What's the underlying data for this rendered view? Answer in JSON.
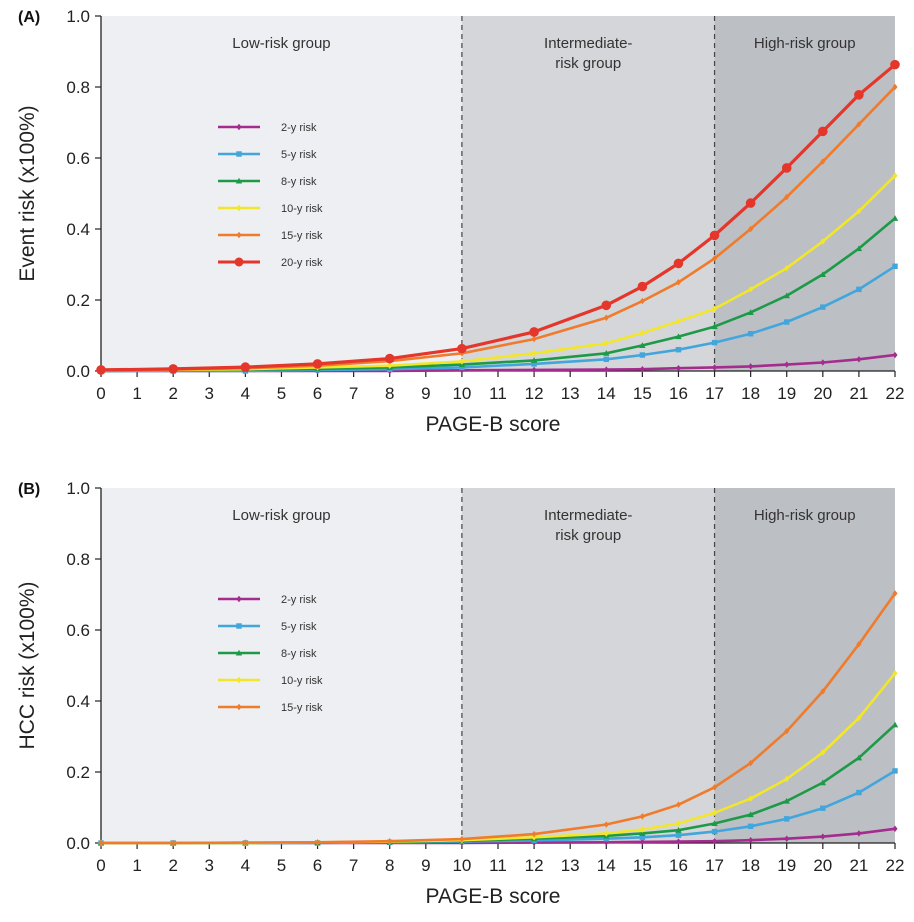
{
  "chart_data": [
    {
      "type": "line",
      "panel_label": "(A)",
      "xlabel": "PAGE-B score",
      "ylabel": "Event risk (x100%)",
      "xlim": [
        0,
        22
      ],
      "ylim": [
        0,
        1.0
      ],
      "x_ticks": [
        0,
        1,
        2,
        3,
        4,
        5,
        6,
        7,
        8,
        9,
        10,
        11,
        12,
        13,
        14,
        15,
        16,
        17,
        18,
        19,
        20,
        21,
        22
      ],
      "y_ticks": [
        "0.0",
        "0.2",
        "0.4",
        "0.6",
        "0.8",
        "1.0"
      ],
      "cutoffs": [
        10,
        17
      ],
      "zones": [
        {
          "label": [
            "Low-risk group"
          ],
          "color": "#eeeff2",
          "from": 0,
          "to": 10
        },
        {
          "label": [
            "Intermediate-",
            "risk group"
          ],
          "color": "#d5d6d9",
          "from": 10,
          "to": 17
        },
        {
          "label": [
            "High-risk group"
          ],
          "color": "#bcbfc4",
          "from": 17,
          "to": 22
        }
      ],
      "legend_position": "center-left",
      "x": [
        0,
        2,
        4,
        6,
        8,
        10,
        12,
        14,
        15,
        16,
        17,
        18,
        19,
        20,
        21,
        22
      ],
      "series": [
        {
          "name": "2-y risk",
          "color": "#a32c8e",
          "values": [
            0,
            0,
            0,
            0,
            0,
            0.002,
            0.003,
            0.004,
            0.005,
            0.008,
            0.01,
            0.013,
            0.018,
            0.024,
            0.033,
            0.045
          ]
        },
        {
          "name": "5-y risk",
          "color": "#42a6dc",
          "values": [
            0,
            0,
            0,
            0.003,
            0.005,
            0.01,
            0.02,
            0.033,
            0.045,
            0.06,
            0.08,
            0.105,
            0.138,
            0.18,
            0.23,
            0.295
          ]
        },
        {
          "name": "8-y risk",
          "color": "#1d9a47",
          "values": [
            0,
            0.002,
            0.004,
            0.006,
            0.01,
            0.018,
            0.03,
            0.05,
            0.072,
            0.097,
            0.125,
            0.165,
            0.212,
            0.272,
            0.345,
            0.43
          ]
        },
        {
          "name": "10-y risk",
          "color": "#f2e62a",
          "values": [
            0.001,
            0.003,
            0.005,
            0.01,
            0.015,
            0.027,
            0.05,
            0.078,
            0.107,
            0.14,
            0.175,
            0.23,
            0.29,
            0.365,
            0.45,
            0.55
          ]
        },
        {
          "name": "15-y risk",
          "color": "#ef7b2c",
          "values": [
            0.002,
            0.004,
            0.008,
            0.015,
            0.028,
            0.05,
            0.09,
            0.15,
            0.197,
            0.25,
            0.317,
            0.4,
            0.49,
            0.59,
            0.695,
            0.8
          ]
        },
        {
          "name": "20-y risk",
          "color": "#e4362a",
          "values": [
            0.003,
            0.006,
            0.011,
            0.02,
            0.035,
            0.063,
            0.11,
            0.185,
            0.238,
            0.303,
            0.382,
            0.473,
            0.572,
            0.675,
            0.778,
            0.863
          ]
        }
      ]
    },
    {
      "type": "line",
      "panel_label": "(B)",
      "xlabel": "PAGE-B score",
      "ylabel": "HCC risk (x100%)",
      "xlim": [
        0,
        22
      ],
      "ylim": [
        0,
        1.0
      ],
      "x_ticks": [
        0,
        1,
        2,
        3,
        4,
        5,
        6,
        7,
        8,
        9,
        10,
        11,
        12,
        13,
        14,
        15,
        16,
        17,
        18,
        19,
        20,
        21,
        22
      ],
      "y_ticks": [
        "0.0",
        "0.2",
        "0.4",
        "0.6",
        "0.8",
        "1.0"
      ],
      "cutoffs": [
        10,
        17
      ],
      "zones": [
        {
          "label": [
            "Low-risk group"
          ],
          "color": "#eeeff2",
          "from": 0,
          "to": 10
        },
        {
          "label": [
            "Intermediate-",
            "risk group"
          ],
          "color": "#d5d6d9",
          "from": 10,
          "to": 17
        },
        {
          "label": [
            "High-risk group"
          ],
          "color": "#bcbfc4",
          "from": 17,
          "to": 22
        }
      ],
      "legend_position": "center-left",
      "x": [
        0,
        2,
        4,
        6,
        8,
        10,
        12,
        14,
        15,
        16,
        17,
        18,
        19,
        20,
        21,
        22
      ],
      "series": [
        {
          "name": "2-y risk",
          "color": "#a32c8e",
          "values": [
            0,
            0,
            0,
            0,
            0,
            0,
            0.001,
            0.002,
            0.003,
            0.004,
            0.005,
            0.008,
            0.012,
            0.018,
            0.027,
            0.04
          ]
        },
        {
          "name": "5-y risk",
          "color": "#42a6dc",
          "values": [
            0,
            0,
            0,
            0,
            0.002,
            0.004,
            0.007,
            0.012,
            0.016,
            0.022,
            0.032,
            0.047,
            0.068,
            0.098,
            0.142,
            0.203
          ]
        },
        {
          "name": "8-y risk",
          "color": "#1d9a47",
          "values": [
            0,
            0,
            0,
            0.001,
            0.003,
            0.006,
            0.012,
            0.02,
            0.027,
            0.036,
            0.055,
            0.08,
            0.118,
            0.17,
            0.24,
            0.333
          ]
        },
        {
          "name": "10-y risk",
          "color": "#f2e62a",
          "values": [
            0,
            0,
            0,
            0.002,
            0.004,
            0.008,
            0.016,
            0.027,
            0.038,
            0.055,
            0.085,
            0.125,
            0.18,
            0.255,
            0.352,
            0.478
          ]
        },
        {
          "name": "15-y risk",
          "color": "#ef7b2c",
          "values": [
            0,
            0,
            0.001,
            0.002,
            0.005,
            0.011,
            0.025,
            0.052,
            0.075,
            0.108,
            0.157,
            0.225,
            0.315,
            0.427,
            0.56,
            0.703
          ]
        }
      ]
    }
  ]
}
